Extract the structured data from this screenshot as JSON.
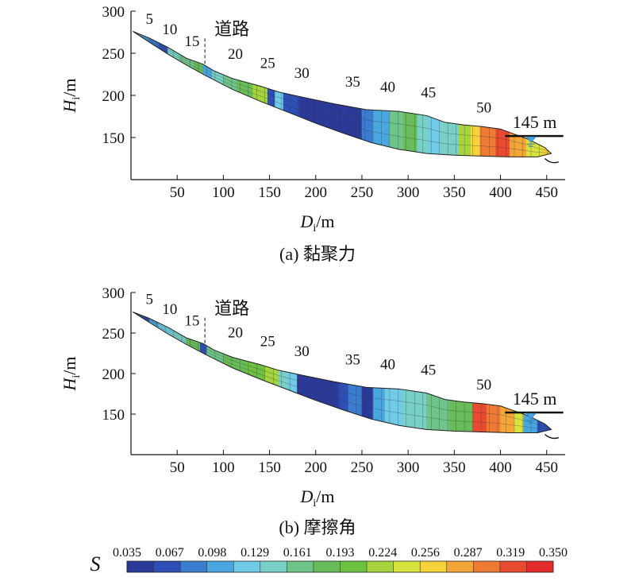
{
  "charts": [
    {
      "id": "a",
      "caption": "(a) 黏聚力",
      "ylabel_main": "H",
      "ylabel_sub": "i",
      "ylabel_unit": "/m",
      "xlabel_main": "D",
      "xlabel_sub": "i",
      "xlabel_unit": "/m",
      "section_numbers": [
        "5",
        "10",
        "15",
        "20",
        "25",
        "30",
        "35",
        "40",
        "45",
        "50"
      ],
      "road_label": "道路",
      "water_label": "145 m"
    },
    {
      "id": "b",
      "caption": "(b) 摩擦角",
      "ylabel_main": "H",
      "ylabel_sub": "i",
      "ylabel_unit": "/m",
      "xlabel_main": "D",
      "xlabel_sub": "i",
      "xlabel_unit": "/m",
      "section_numbers": [
        "5",
        "10",
        "15",
        "20",
        "25",
        "30",
        "35",
        "40",
        "45",
        "50"
      ],
      "road_label": "道路",
      "water_label": "145 m"
    }
  ],
  "chart_data": {
    "type": "heatmap",
    "x_range": [
      0,
      470
    ],
    "y_range": [
      100,
      300
    ],
    "x_ticks": [
      50,
      100,
      150,
      200,
      250,
      300,
      350,
      400,
      450
    ],
    "y_ticks": [
      150,
      200,
      250,
      300
    ],
    "section_positions_m": [
      5,
      10,
      15,
      20,
      25,
      30,
      35,
      40,
      45,
      50
    ],
    "road_position_m": 80,
    "water_level_m": 145,
    "slope_profile": {
      "top": [
        [
          2,
          276
        ],
        [
          20,
          268
        ],
        [
          40,
          257
        ],
        [
          60,
          244
        ],
        [
          78,
          237
        ],
        [
          90,
          229
        ],
        [
          110,
          220
        ],
        [
          140,
          211
        ],
        [
          160,
          204
        ],
        [
          185,
          198
        ],
        [
          220,
          190
        ],
        [
          255,
          183
        ],
        [
          290,
          181
        ],
        [
          320,
          176
        ],
        [
          340,
          168
        ],
        [
          360,
          165
        ],
        [
          380,
          163
        ],
        [
          400,
          160
        ],
        [
          430,
          148
        ],
        [
          448,
          138
        ],
        [
          455,
          131
        ]
      ],
      "bottom": [
        [
          2,
          276
        ],
        [
          20,
          263
        ],
        [
          40,
          249
        ],
        [
          60,
          236
        ],
        [
          80,
          224
        ],
        [
          110,
          207
        ],
        [
          140,
          193
        ],
        [
          170,
          180
        ],
        [
          200,
          167
        ],
        [
          230,
          155
        ],
        [
          260,
          144
        ],
        [
          290,
          136
        ],
        [
          320,
          131
        ],
        [
          350,
          129
        ],
        [
          380,
          128
        ],
        [
          410,
          127
        ],
        [
          440,
          127
        ],
        [
          455,
          131
        ]
      ]
    },
    "colorbar": {
      "label": "S",
      "ticks": [
        "0.035",
        "0.067",
        "0.098",
        "0.129",
        "0.161",
        "0.193",
        "0.224",
        "0.256",
        "0.287",
        "0.319",
        "0.350"
      ],
      "colors": [
        "#2b3a99",
        "#2e4fb5",
        "#3a7cd0",
        "#4aa6df",
        "#6fcbe6",
        "#79d0c6",
        "#6fc48a",
        "#68bd5a",
        "#6cc140",
        "#a6d43c",
        "#d8e23c",
        "#f5d23a",
        "#f4a537",
        "#ee7a34",
        "#e74a2f",
        "#e32b2b"
      ]
    },
    "series": [
      {
        "name": "(a) 黏聚力",
        "bands": [
          [
            2,
            12,
            4
          ],
          [
            12,
            20,
            3
          ],
          [
            20,
            30,
            2
          ],
          [
            30,
            40,
            1
          ],
          [
            40,
            52,
            5
          ],
          [
            52,
            68,
            6
          ],
          [
            68,
            78,
            7
          ],
          [
            78,
            88,
            3
          ],
          [
            88,
            100,
            5
          ],
          [
            100,
            115,
            6
          ],
          [
            115,
            132,
            7
          ],
          [
            132,
            148,
            9
          ],
          [
            148,
            156,
            1
          ],
          [
            156,
            165,
            4
          ],
          [
            165,
            182,
            1
          ],
          [
            182,
            250,
            0
          ],
          [
            250,
            262,
            2
          ],
          [
            262,
            280,
            3
          ],
          [
            280,
            295,
            6
          ],
          [
            295,
            310,
            7
          ],
          [
            310,
            322,
            5
          ],
          [
            322,
            335,
            4
          ],
          [
            335,
            355,
            5
          ],
          [
            355,
            368,
            9
          ],
          [
            368,
            378,
            11
          ],
          [
            378,
            395,
            13
          ],
          [
            395,
            410,
            14
          ],
          [
            410,
            428,
            12
          ],
          [
            428,
            445,
            10
          ],
          [
            445,
            455,
            11
          ]
        ]
      },
      {
        "name": "(b) 摩擦角",
        "bands": [
          [
            2,
            12,
            2
          ],
          [
            12,
            20,
            1
          ],
          [
            20,
            30,
            3
          ],
          [
            30,
            45,
            4
          ],
          [
            45,
            60,
            5
          ],
          [
            60,
            75,
            7
          ],
          [
            75,
            82,
            1
          ],
          [
            82,
            100,
            6
          ],
          [
            100,
            125,
            7
          ],
          [
            125,
            145,
            8
          ],
          [
            145,
            160,
            9
          ],
          [
            160,
            170,
            5
          ],
          [
            170,
            180,
            4
          ],
          [
            180,
            225,
            0
          ],
          [
            225,
            235,
            1
          ],
          [
            235,
            250,
            2
          ],
          [
            250,
            262,
            0
          ],
          [
            262,
            275,
            3
          ],
          [
            275,
            295,
            4
          ],
          [
            295,
            320,
            5
          ],
          [
            320,
            345,
            6
          ],
          [
            345,
            370,
            7
          ],
          [
            370,
            385,
            14
          ],
          [
            385,
            400,
            13
          ],
          [
            400,
            415,
            12
          ],
          [
            415,
            425,
            10
          ],
          [
            425,
            440,
            3
          ],
          [
            440,
            455,
            1
          ]
        ]
      }
    ]
  }
}
